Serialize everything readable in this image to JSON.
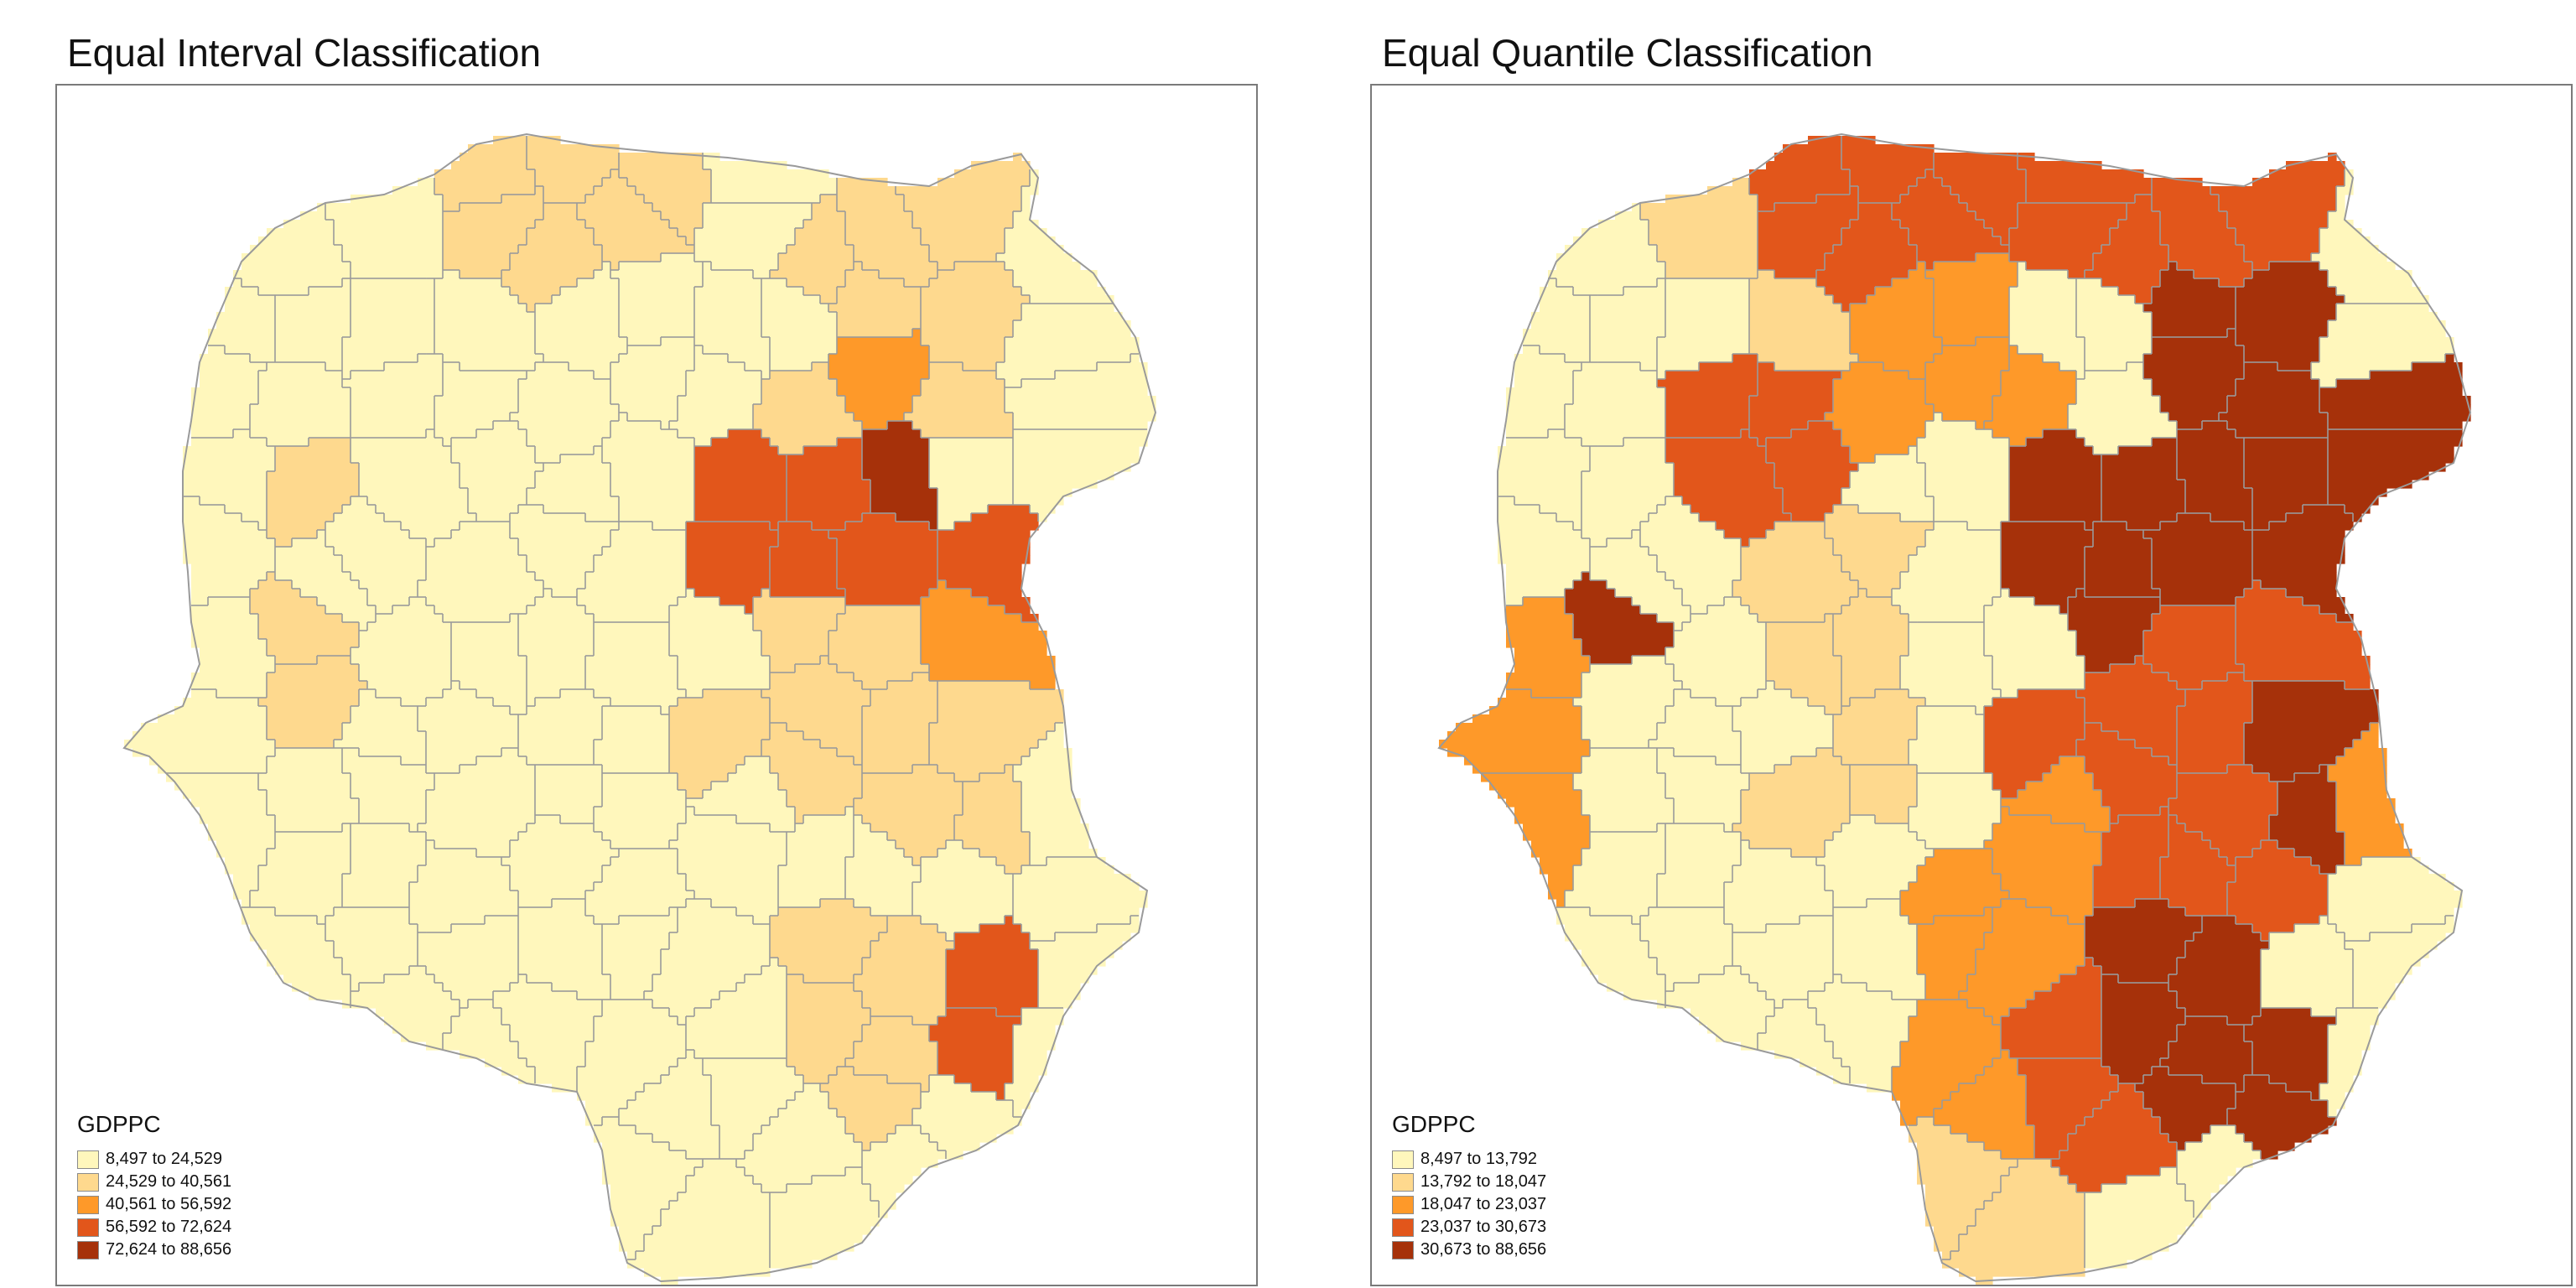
{
  "panels": [
    {
      "title": "Equal Interval Classification",
      "legend": {
        "title": "GDPPC",
        "classes": [
          {
            "label": "8,497 to 24,529",
            "color": "#fff7bc"
          },
          {
            "label": "24,529 to 40,561",
            "color": "#fed98e"
          },
          {
            "label": "40,561 to 56,592",
            "color": "#fe9929"
          },
          {
            "label": "56,592 to 72,624",
            "color": "#e2561b"
          },
          {
            "label": "72,624 to 88,656",
            "color": "#a6310a"
          }
        ]
      }
    },
    {
      "title": "Equal Quantile Classification",
      "legend": {
        "title": "GDPPC",
        "classes": [
          {
            "label": "8,497 to 13,792",
            "color": "#fff7bc"
          },
          {
            "label": "13,792 to 18,047",
            "color": "#fed98e"
          },
          {
            "label": "18,047 to 23,037",
            "color": "#fe9929"
          },
          {
            "label": "23,037 to 30,673",
            "color": "#e2561b"
          },
          {
            "label": "30,673 to 88,656",
            "color": "#a6310a"
          }
        ]
      }
    }
  ],
  "colors": {
    "boundary": "#9a9a9a",
    "frame": "#7a7a7a"
  }
}
